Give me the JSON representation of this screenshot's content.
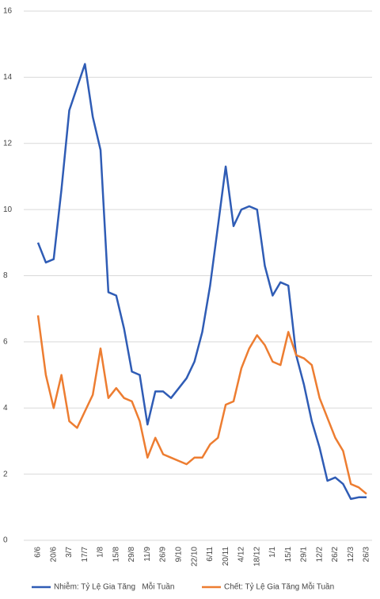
{
  "chart_data": {
    "type": "line",
    "categories": [
      "6/6",
      null,
      "20/6",
      null,
      "3/7",
      null,
      "17/7",
      null,
      "1/8",
      null,
      "15/8",
      null,
      "29/8",
      null,
      "11/9",
      null,
      "26/9",
      null,
      "9/10",
      null,
      "22/10",
      null,
      "6/11",
      null,
      "20/11",
      null,
      "4/12",
      null,
      "18/12",
      null,
      "1/1",
      null,
      "15/1",
      null,
      "29/1",
      null,
      "12/2",
      null,
      "26/2",
      null,
      "12/3",
      null,
      "26/3"
    ],
    "series": [
      {
        "name": "Nhiễm: Tỷ Lệ Gia Tăng   Mỗi Tuần",
        "color": "#2f5cb5",
        "values": [
          9.0,
          8.4,
          8.5,
          10.6,
          13.0,
          13.7,
          14.4,
          12.8,
          11.8,
          7.5,
          7.4,
          6.4,
          5.1,
          5.0,
          3.5,
          4.5,
          4.5,
          4.3,
          4.6,
          4.9,
          5.4,
          6.3,
          7.7,
          9.5,
          11.3,
          9.5,
          10.0,
          10.1,
          10.0,
          8.3,
          7.4,
          7.8,
          7.7,
          5.6,
          4.7,
          3.6,
          2.8,
          1.8,
          1.9,
          1.7,
          1.25,
          1.3,
          1.3
        ]
      },
      {
        "name": "Chết: Tỷ Lệ Gia Tăng Mỗi Tuần",
        "color": "#ed7d31",
        "values": [
          6.8,
          5.0,
          4.0,
          5.0,
          3.6,
          3.4,
          3.9,
          4.4,
          5.8,
          4.3,
          4.6,
          4.3,
          4.2,
          3.6,
          2.5,
          3.1,
          2.6,
          2.5,
          2.4,
          2.3,
          2.5,
          2.5,
          2.9,
          3.1,
          4.1,
          4.2,
          5.2,
          5.8,
          6.2,
          5.9,
          5.4,
          5.3,
          6.3,
          5.6,
          5.5,
          5.3,
          4.3,
          3.7,
          3.1,
          2.7,
          1.7,
          1.6,
          1.4
        ]
      }
    ],
    "ylim": [
      0,
      16
    ],
    "yticks": [
      0,
      2,
      4,
      6,
      8,
      10,
      12,
      14,
      16
    ],
    "grid": true
  }
}
